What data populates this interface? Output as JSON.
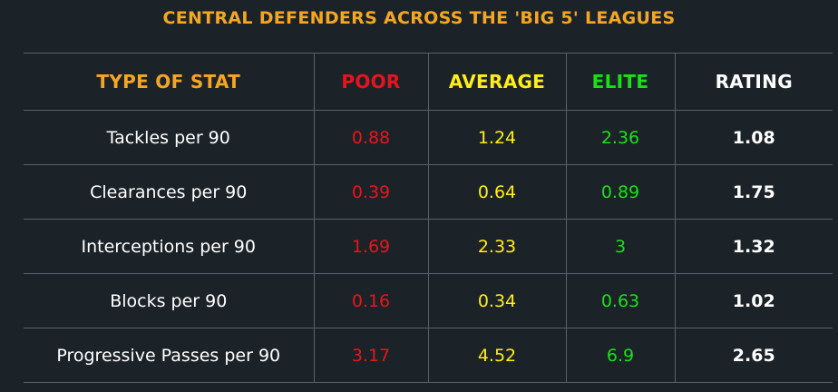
{
  "title": "CENTRAL DEFENDERS ACROSS THE 'BIG 5' LEAGUES",
  "colors": {
    "background": "#1c2328",
    "title": "#f5a623",
    "poor": "#e8141c",
    "average": "#ffee1a",
    "elite": "#19e019",
    "rating": "#ffffff"
  },
  "table": {
    "headers": {
      "stat": "TYPE OF STAT",
      "poor": "POOR",
      "average": "AVERAGE",
      "elite": "ELITE",
      "rating": "RATING"
    },
    "rows": [
      {
        "stat": "Tackles per 90",
        "poor": "0.88",
        "average": "1.24",
        "elite": "2.36",
        "rating": "1.08"
      },
      {
        "stat": "Clearances per 90",
        "poor": "0.39",
        "average": "0.64",
        "elite": "0.89",
        "rating": "1.75"
      },
      {
        "stat": "Interceptions per 90",
        "poor": "1.69",
        "average": "2.33",
        "elite": "3",
        "rating": "1.32"
      },
      {
        "stat": "Blocks per 90",
        "poor": "0.16",
        "average": "0.34",
        "elite": "0.63",
        "rating": "1.02"
      },
      {
        "stat": "Progressive Passes per 90",
        "poor": "3.17",
        "average": "4.52",
        "elite": "6.9",
        "rating": "2.65"
      }
    ]
  }
}
